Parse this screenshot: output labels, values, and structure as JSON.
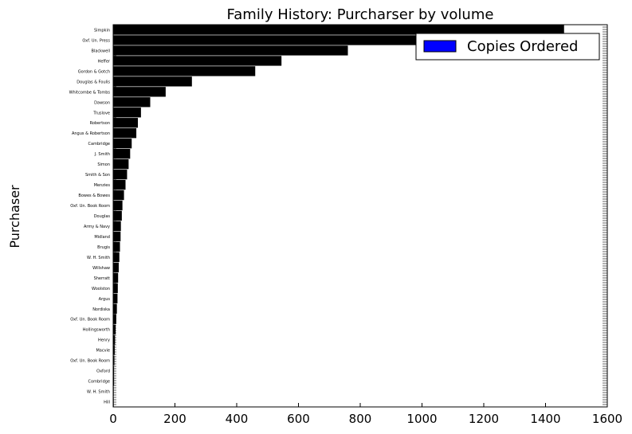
{
  "chart_data": {
    "type": "bar",
    "orientation": "horizontal",
    "title": "Family History: Purcharser by volume",
    "ylabel": "Purchaser",
    "xlabel": "",
    "xlim": [
      0,
      1600
    ],
    "x_ticks": [
      "0",
      "200",
      "400",
      "600",
      "800",
      "1000",
      "1200",
      "1400",
      "1600"
    ],
    "grid": false,
    "legend": {
      "position": "top-right",
      "entries": [
        {
          "label": "Copies Ordered",
          "color": "#0000ff"
        }
      ]
    },
    "bar_color": "#000000",
    "categories": [
      "Simpkin",
      "Oxf. Un. Press",
      "Blackwell",
      "Heffer",
      "Gordon & Gotch",
      "Douglas & Foulis",
      "Whitcombe & Tombs",
      "Dawson",
      "Truslove",
      "Robertson",
      "Angus & Robertson",
      "Cambridge",
      "J. Smith",
      "Simon",
      "Smith & Son",
      "Menzies",
      "Bowes & Bowes",
      "Oxf. Un. Book Room",
      "Douglas",
      "Army & Navy",
      "Midland",
      "Brugis",
      "W. H. Smith",
      "Willshaw",
      "Sherratt",
      "Woolston",
      "Argus",
      "Nordiska",
      "Oxf. Un. Book Room",
      "Hollingsworth",
      "Henry",
      "Macvie",
      "Oxf. Un. Book Room",
      "Oxford",
      "Combridge",
      "W. H. Smith",
      "Hill"
    ],
    "values": [
      1460,
      980,
      760,
      545,
      460,
      255,
      170,
      120,
      90,
      80,
      75,
      60,
      55,
      50,
      45,
      40,
      35,
      30,
      28,
      25,
      24,
      22,
      20,
      18,
      16,
      15,
      14,
      12,
      10,
      8,
      6,
      5,
      4,
      3,
      3,
      2,
      2
    ],
    "series": [
      {
        "name": "Copies Ordered"
      }
    ]
  }
}
